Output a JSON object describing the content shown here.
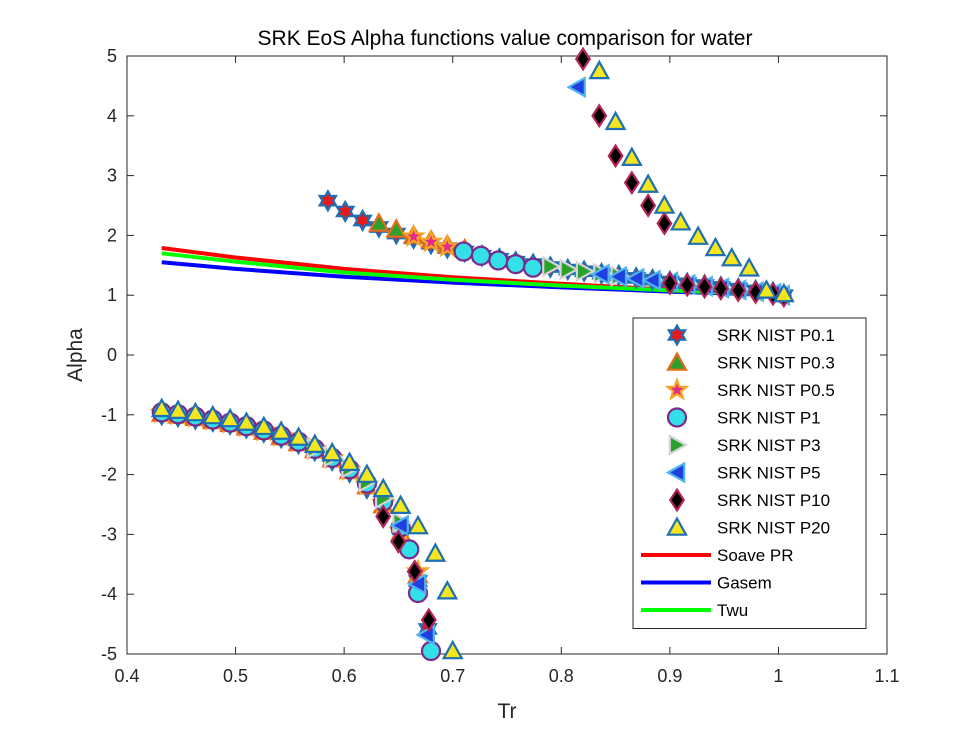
{
  "chart_data": {
    "type": "scatter",
    "title": "SRK EoS Alpha functions value comparison for water",
    "xlabel": "Tr",
    "ylabel": "Alpha",
    "xlim": [
      0.4,
      1.1
    ],
    "ylim": [
      -5,
      5
    ],
    "xticks": [
      "0.4",
      "0.5",
      "0.6",
      "0.7",
      "0.8",
      "0.9",
      "1",
      "1.1"
    ],
    "yticks": [
      "5",
      "4",
      "3",
      "2",
      "1",
      "0",
      "-1",
      "-2",
      "-3",
      "-4",
      "-5"
    ],
    "grid": false,
    "legend_position": "lower-right",
    "series": [
      {
        "name": "SRK NIST P0.1",
        "marker": "hexagram",
        "fill": "#e41a1c",
        "stroke": "#1f6fb4",
        "points": [
          [
            0.585,
            2.58
          ],
          [
            0.601,
            2.4
          ],
          [
            0.617,
            2.25
          ],
          [
            0.632,
            2.14
          ],
          [
            0.648,
            2.03
          ],
          [
            0.664,
            1.95
          ],
          [
            0.68,
            1.86
          ],
          [
            0.695,
            1.79
          ],
          [
            0.711,
            1.73
          ],
          [
            0.727,
            1.66
          ],
          [
            0.743,
            1.61
          ],
          [
            0.758,
            1.56
          ],
          [
            0.774,
            1.52
          ],
          [
            0.79,
            1.47
          ],
          [
            0.806,
            1.43
          ],
          [
            0.821,
            1.4
          ],
          [
            0.837,
            1.36
          ],
          [
            0.853,
            1.33
          ],
          [
            0.869,
            1.29
          ],
          [
            0.884,
            1.26
          ],
          [
            0.9,
            1.23
          ],
          [
            0.916,
            1.2
          ],
          [
            0.932,
            1.17
          ],
          [
            0.947,
            1.14
          ],
          [
            0.963,
            1.11
          ],
          [
            0.979,
            1.08
          ],
          [
            0.995,
            1.05
          ],
          [
            1.005,
            1.0
          ],
          [
            0.432,
            -1.0
          ],
          [
            0.447,
            -1.03
          ],
          [
            0.463,
            -1.07
          ],
          [
            0.479,
            -1.11
          ],
          [
            0.495,
            -1.16
          ],
          [
            0.51,
            -1.22
          ],
          [
            0.526,
            -1.29
          ],
          [
            0.542,
            -1.38
          ],
          [
            0.558,
            -1.48
          ],
          [
            0.573,
            -1.6
          ],
          [
            0.589,
            -1.76
          ],
          [
            0.605,
            -1.96
          ],
          [
            0.621,
            -2.23
          ],
          [
            0.636,
            -2.55
          ],
          [
            0.652,
            -3.05
          ],
          [
            0.668,
            -3.78
          ],
          [
            0.677,
            -4.58
          ]
        ]
      },
      {
        "name": "SRK NIST P0.3",
        "marker": "triangle-up",
        "fill": "#2ca02c",
        "stroke": "#e66b1d",
        "points": [
          [
            0.632,
            2.2
          ],
          [
            0.648,
            2.1
          ],
          [
            0.664,
            2.0
          ],
          [
            0.68,
            1.92
          ],
          [
            0.695,
            1.84
          ],
          [
            0.711,
            1.77
          ],
          [
            0.432,
            -0.98
          ],
          [
            0.447,
            -1.01
          ],
          [
            0.463,
            -1.05
          ],
          [
            0.479,
            -1.1
          ],
          [
            0.495,
            -1.15
          ],
          [
            0.51,
            -1.21
          ],
          [
            0.526,
            -1.28
          ],
          [
            0.542,
            -1.37
          ],
          [
            0.558,
            -1.47
          ],
          [
            0.573,
            -1.59
          ],
          [
            0.589,
            -1.74
          ],
          [
            0.605,
            -1.94
          ],
          [
            0.621,
            -2.19
          ],
          [
            0.636,
            -2.51
          ],
          [
            0.652,
            -2.98
          ],
          [
            0.668,
            -3.68
          ]
        ]
      },
      {
        "name": "SRK NIST P0.5",
        "marker": "pentagram",
        "fill": "#e7298a",
        "stroke": "#f5a623",
        "points": [
          [
            0.664,
            1.98
          ],
          [
            0.68,
            1.89
          ],
          [
            0.695,
            1.81
          ],
          [
            0.432,
            -0.97
          ],
          [
            0.447,
            -1.0
          ],
          [
            0.463,
            -1.04
          ],
          [
            0.479,
            -1.09
          ],
          [
            0.495,
            -1.14
          ],
          [
            0.51,
            -1.2
          ],
          [
            0.526,
            -1.27
          ],
          [
            0.542,
            -1.36
          ],
          [
            0.558,
            -1.46
          ],
          [
            0.573,
            -1.58
          ],
          [
            0.589,
            -1.73
          ],
          [
            0.605,
            -1.93
          ],
          [
            0.621,
            -2.17
          ],
          [
            0.636,
            -2.48
          ],
          [
            0.652,
            -2.94
          ],
          [
            0.668,
            -3.62
          ]
        ]
      },
      {
        "name": "SRK NIST P1",
        "marker": "circle",
        "fill": "#33e0e8",
        "stroke": "#7b2a8c",
        "points": [
          [
            0.71,
            1.73
          ],
          [
            0.726,
            1.66
          ],
          [
            0.742,
            1.58
          ],
          [
            0.758,
            1.52
          ],
          [
            0.774,
            1.46
          ],
          [
            0.432,
            -0.96
          ],
          [
            0.447,
            -0.99
          ],
          [
            0.463,
            -1.03
          ],
          [
            0.479,
            -1.08
          ],
          [
            0.495,
            -1.13
          ],
          [
            0.51,
            -1.19
          ],
          [
            0.526,
            -1.26
          ],
          [
            0.542,
            -1.35
          ],
          [
            0.558,
            -1.45
          ],
          [
            0.573,
            -1.57
          ],
          [
            0.589,
            -1.72
          ],
          [
            0.605,
            -1.91
          ],
          [
            0.621,
            -2.15
          ],
          [
            0.636,
            -2.45
          ],
          [
            0.652,
            -2.88
          ],
          [
            0.66,
            -3.25
          ],
          [
            0.668,
            -3.98
          ],
          [
            0.68,
            -4.95
          ]
        ]
      },
      {
        "name": "SRK NIST P3",
        "marker": "triangle-right",
        "fill": "#2ca02c",
        "stroke": "#d4d4d4",
        "points": [
          [
            0.79,
            1.48
          ],
          [
            0.806,
            1.43
          ],
          [
            0.821,
            1.4
          ],
          [
            0.837,
            1.36
          ],
          [
            0.853,
            1.32
          ],
          [
            0.573,
            -1.56
          ],
          [
            0.589,
            -1.7
          ],
          [
            0.605,
            -1.89
          ],
          [
            0.621,
            -2.12
          ],
          [
            0.636,
            -2.4
          ],
          [
            0.652,
            -2.8
          ]
        ]
      },
      {
        "name": "SRK NIST P5",
        "marker": "triangle-left",
        "fill": "#1f3fe0",
        "stroke": "#4fb3f0",
        "points": [
          [
            0.815,
            4.48
          ],
          [
            0.837,
            1.35
          ],
          [
            0.853,
            1.31
          ],
          [
            0.869,
            1.28
          ],
          [
            0.884,
            1.25
          ],
          [
            0.9,
            1.22
          ],
          [
            0.916,
            1.18
          ],
          [
            0.932,
            1.15
          ],
          [
            0.947,
            1.12
          ],
          [
            0.963,
            1.09
          ],
          [
            0.979,
            1.06
          ],
          [
            0.995,
            1.03
          ],
          [
            1.003,
            1.0
          ],
          [
            0.652,
            -2.85
          ],
          [
            0.668,
            -3.83
          ],
          [
            0.676,
            -4.68
          ]
        ]
      },
      {
        "name": "SRK NIST P10",
        "marker": "diamond",
        "fill": "#000000",
        "stroke": "#b3245a",
        "points": [
          [
            0.82,
            4.95
          ],
          [
            0.835,
            4.0
          ],
          [
            0.85,
            3.33
          ],
          [
            0.865,
            2.88
          ],
          [
            0.88,
            2.5
          ],
          [
            0.895,
            2.2
          ],
          [
            0.9,
            1.2
          ],
          [
            0.916,
            1.17
          ],
          [
            0.932,
            1.14
          ],
          [
            0.947,
            1.11
          ],
          [
            0.963,
            1.08
          ],
          [
            0.979,
            1.05
          ],
          [
            0.995,
            1.02
          ],
          [
            1.005,
            0.99
          ],
          [
            0.636,
            -2.7
          ],
          [
            0.65,
            -3.12
          ],
          [
            0.665,
            -3.62
          ],
          [
            0.678,
            -4.43
          ]
        ]
      },
      {
        "name": "SRK NIST P20",
        "marker": "triangle-up",
        "fill": "#f5e61e",
        "stroke": "#1f6fb4",
        "points": [
          [
            0.835,
            4.75
          ],
          [
            0.85,
            3.9
          ],
          [
            0.865,
            3.3
          ],
          [
            0.88,
            2.85
          ],
          [
            0.895,
            2.5
          ],
          [
            0.91,
            2.22
          ],
          [
            0.926,
            1.98
          ],
          [
            0.942,
            1.79
          ],
          [
            0.957,
            1.62
          ],
          [
            0.973,
            1.45
          ],
          [
            0.989,
            1.08
          ],
          [
            1.005,
            1.02
          ],
          [
            0.432,
            -0.9
          ],
          [
            0.447,
            -0.93
          ],
          [
            0.463,
            -0.97
          ],
          [
            0.479,
            -1.02
          ],
          [
            0.495,
            -1.07
          ],
          [
            0.51,
            -1.13
          ],
          [
            0.526,
            -1.2
          ],
          [
            0.542,
            -1.28
          ],
          [
            0.558,
            -1.38
          ],
          [
            0.573,
            -1.5
          ],
          [
            0.589,
            -1.64
          ],
          [
            0.605,
            -1.8
          ],
          [
            0.621,
            -2.0
          ],
          [
            0.636,
            -2.24
          ],
          [
            0.652,
            -2.52
          ],
          [
            0.668,
            -2.86
          ],
          [
            0.684,
            -3.32
          ],
          [
            0.695,
            -3.95
          ],
          [
            0.7,
            -4.95
          ]
        ]
      },
      {
        "name": "Soave PR",
        "marker": "line",
        "color": "#ff0000",
        "points": [
          [
            0.432,
            1.79
          ],
          [
            0.5,
            1.63
          ],
          [
            0.6,
            1.44
          ],
          [
            0.7,
            1.3
          ],
          [
            0.8,
            1.19
          ],
          [
            0.9,
            1.09
          ],
          [
            1.005,
            1.0
          ]
        ]
      },
      {
        "name": "Gasem",
        "marker": "line",
        "color": "#0000ff",
        "points": [
          [
            0.432,
            1.55
          ],
          [
            0.5,
            1.44
          ],
          [
            0.6,
            1.31
          ],
          [
            0.7,
            1.21
          ],
          [
            0.8,
            1.13
          ],
          [
            0.9,
            1.06
          ],
          [
            1.005,
            1.0
          ]
        ]
      },
      {
        "name": "Twu",
        "marker": "line",
        "color": "#00ff00",
        "points": [
          [
            0.432,
            1.7
          ],
          [
            0.5,
            1.56
          ],
          [
            0.6,
            1.38
          ],
          [
            0.7,
            1.26
          ],
          [
            0.8,
            1.16
          ],
          [
            0.9,
            1.08
          ],
          [
            1.005,
            1.0
          ]
        ]
      }
    ]
  }
}
